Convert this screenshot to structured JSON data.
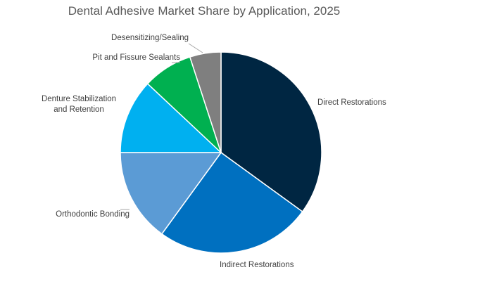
{
  "chart_data": {
    "type": "pie",
    "title": "Dental Adhesive Market Share by Application, 2025",
    "start_angle_deg": 0,
    "direction": "clockwise",
    "legend": "none",
    "slices": [
      {
        "label": "Direct Restorations",
        "value": 35,
        "color": "#002642"
      },
      {
        "label": "Indirect Restorations",
        "value": 25,
        "color": "#0070C0"
      },
      {
        "label": "Orthodontic Bonding",
        "value": 15,
        "color": "#5B9BD5"
      },
      {
        "label": "Denture Stabilization and Retention",
        "label_lines": [
          "Denture Stabilization",
          "and Retention"
        ],
        "value": 12,
        "color": "#00B0F0"
      },
      {
        "label": "Pit and Fissure Sealants",
        "value": 8,
        "color": "#00B050"
      },
      {
        "label": "Desensitizing/Sealing",
        "value": 5,
        "color": "#7F7F7F"
      }
    ]
  }
}
